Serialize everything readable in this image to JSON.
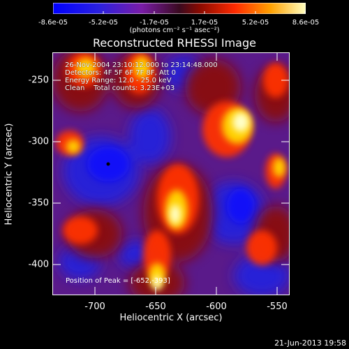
{
  "colorbar": {
    "ticks": [
      "-8.6e-05",
      "-5.2e-05",
      "-1.7e-05",
      "1.7e-05",
      "5.2e-05",
      "8.6e-05"
    ],
    "unit": "(photons cm⁻² s⁻¹ asec⁻²)"
  },
  "title": "Reconstructed RHESSI Image",
  "info": {
    "line1": "26-Nov-2004 23:10:12.000 to 23:14:48.000",
    "line2": "Detectors: 4F 5F 6F 7F 8F, Att 0",
    "line3": "Energy Range: 12.0 - 25.0 keV",
    "line4": "Clean    Total counts: 3.23E+03",
    "peak": "Position of Peak = [-652,-393]"
  },
  "axes": {
    "xlabel": "Heliocentric X (arcsec)",
    "ylabel": "Heliocentric Y (arcsec)",
    "xticks": [
      "-700",
      "-650",
      "-600",
      "-550"
    ],
    "yticks": [
      "-250",
      "-300",
      "-350",
      "-400"
    ],
    "xrange": [
      -735,
      -540
    ],
    "yrange": [
      -420,
      -222
    ]
  },
  "footer": "21-Jun-2013 19:58"
}
